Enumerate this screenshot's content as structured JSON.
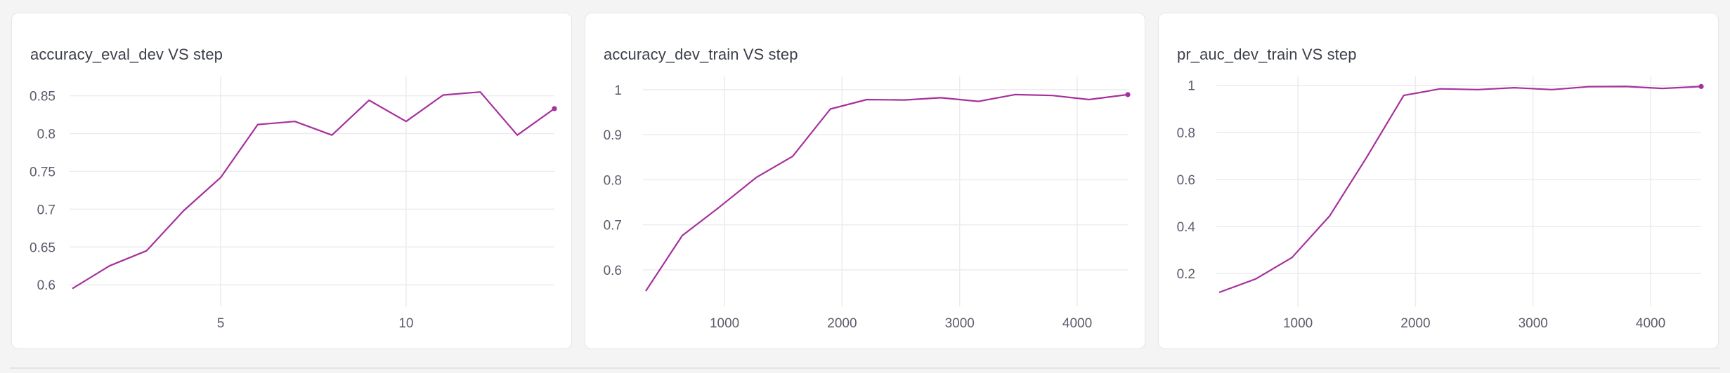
{
  "panels": [
    {
      "title": "accuracy_eval_dev VS step"
    },
    {
      "title": "accuracy_dev_train VS step"
    },
    {
      "title": "pr_auc_dev_train VS step"
    }
  ],
  "line_color": "#a6319b",
  "chart_data": [
    {
      "type": "line",
      "title": "accuracy_eval_dev VS step",
      "xlim": [
        1,
        14
      ],
      "ylim": [
        0.59,
        0.87
      ],
      "x_ticks": [
        5,
        10
      ],
      "y_ticks": [
        0.6,
        0.65,
        0.7,
        0.75,
        0.8,
        0.85
      ],
      "x_tick_labels": [
        "5",
        "10"
      ],
      "y_tick_labels": [
        "0.6",
        "0.65",
        "0.7",
        "0.75",
        "0.8",
        "0.85"
      ],
      "grid": true,
      "series": [
        {
          "x": [
            1,
            2,
            3,
            4,
            5,
            6,
            7,
            8,
            9,
            10,
            11,
            12,
            13,
            14
          ],
          "y": [
            0.595,
            0.625,
            0.645,
            0.698,
            0.742,
            0.812,
            0.816,
            0.798,
            0.844,
            0.816,
            0.851,
            0.855,
            0.798,
            0.833
          ]
        }
      ]
    },
    {
      "type": "line",
      "title": "accuracy_dev_train VS step",
      "xlim": [
        330,
        4430
      ],
      "ylim": [
        0.55,
        1.02
      ],
      "x_ticks": [
        1000,
        2000,
        3000,
        4000
      ],
      "y_ticks": [
        0.6,
        0.7,
        0.8,
        0.9,
        1
      ],
      "x_tick_labels": [
        "1000",
        "2000",
        "3000",
        "4000"
      ],
      "y_tick_labels": [
        "0.6",
        "0.7",
        "0.8",
        "0.9",
        "1"
      ],
      "grid": true,
      "series": [
        {
          "x": [
            330,
            640,
            950,
            1270,
            1580,
            1900,
            2210,
            2530,
            2840,
            3160,
            3470,
            3790,
            4100,
            4430
          ],
          "y": [
            0.553,
            0.676,
            0.738,
            0.805,
            0.852,
            0.957,
            0.978,
            0.977,
            0.982,
            0.974,
            0.989,
            0.987,
            0.978,
            0.989
          ]
        }
      ]
    },
    {
      "type": "line",
      "title": "pr_auc_dev_train VS step",
      "xlim": [
        330,
        4430
      ],
      "ylim": [
        0.12,
        1.02
      ],
      "x_ticks": [
        1000,
        2000,
        3000,
        4000
      ],
      "y_ticks": [
        0.2,
        0.4,
        0.6,
        0.8,
        1
      ],
      "x_tick_labels": [
        "1000",
        "2000",
        "3000",
        "4000"
      ],
      "y_tick_labels": [
        "0.2",
        "0.4",
        "0.6",
        "0.8",
        "1"
      ],
      "grid": true,
      "series": [
        {
          "x": [
            330,
            640,
            950,
            1270,
            1580,
            1900,
            2210,
            2530,
            2840,
            3160,
            3470,
            3790,
            4100,
            4430
          ],
          "y": [
            0.12,
            0.177,
            0.268,
            0.445,
            0.69,
            0.957,
            0.985,
            0.982,
            0.99,
            0.982,
            0.994,
            0.995,
            0.987,
            0.995
          ]
        }
      ]
    }
  ]
}
